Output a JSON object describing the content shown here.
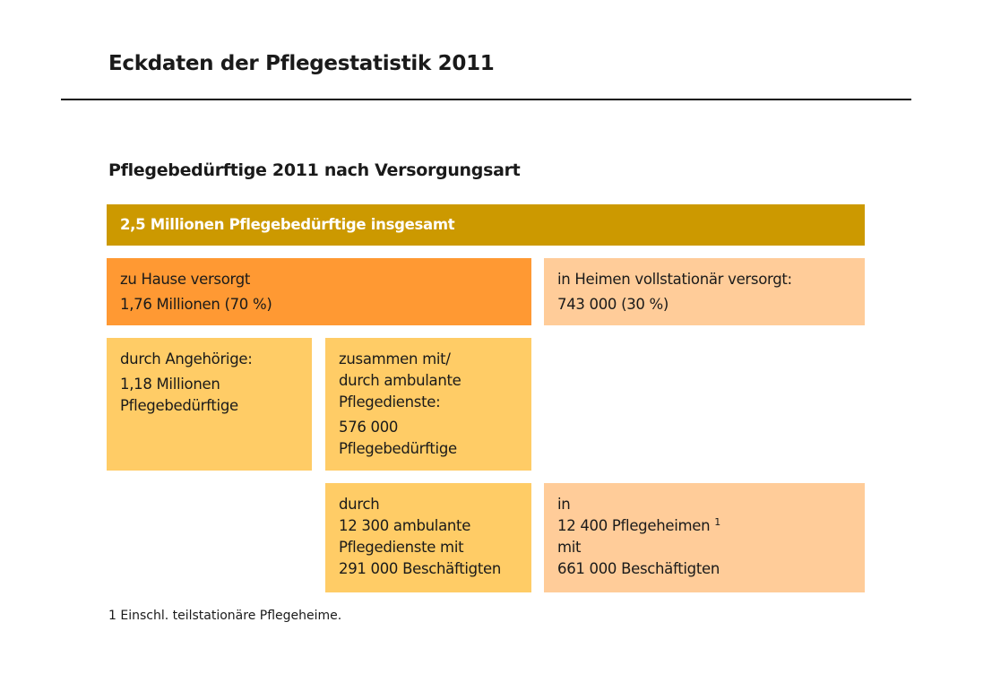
{
  "title": "Eckdaten der Pflegestatistik 2011",
  "subtitle": "Pflegebedürftige 2011 nach Versorgungsart",
  "colors": {
    "total": "#CC9900",
    "home": "#FF9933",
    "institutional": "#FFCC99",
    "sub": "#FFCC66"
  },
  "total": "2,5 Millionen Pflegebedürftige insgesamt",
  "home": {
    "label": "zu Hause versorgt",
    "value": "1,76 Millionen (70 %)"
  },
  "institutional": {
    "label": "in Heimen vollstationär versorgt:",
    "value": "743 000 (30 %)"
  },
  "relatives": {
    "label": "durch Angehörige:",
    "value1": "1,18 Millionen",
    "value2": "Pflegebedürftige"
  },
  "ambulant": {
    "l1": "zusammen mit/",
    "l2": "durch ambulante",
    "l3": "Pflegedienste:",
    "v1": "576 000",
    "v2": "Pflegebedürftige"
  },
  "services": {
    "l1": "durch",
    "l2": "12 300 ambulante",
    "l3": "Pflegedienste mit",
    "l4": "291 000 Beschäftigten"
  },
  "homes": {
    "l1": "in",
    "l2": "12 400 Pflegeheimen",
    "sup": "1",
    "l3": "mit",
    "l4": "661 000 Beschäftigten"
  },
  "footnote": "1 Einschl. teilstationäre Pflegeheime."
}
